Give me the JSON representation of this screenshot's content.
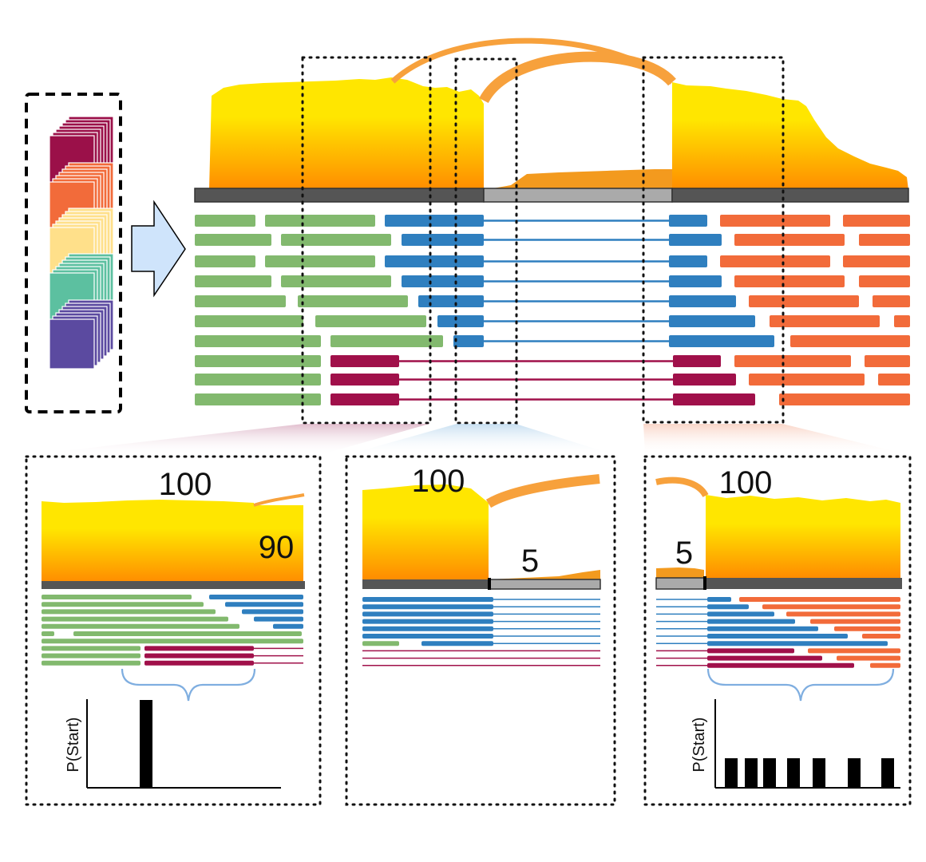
{
  "colors": {
    "green": "#82b96e",
    "blue": "#2f7fbf",
    "orange": "#f26b3a",
    "maroon": "#a0104a",
    "exon_dark": "#555555",
    "exon_light": "#aaaaaa",
    "arc": "#f7a13c",
    "yellow": "#ffe600",
    "deep_orange": "#ff8c00",
    "stack_maroon": "#9b1049",
    "stack_orange": "#f26b3a",
    "stack_yellow": "#ffe08a",
    "stack_teal": "#5cc0a0",
    "stack_purple": "#5b4aa0",
    "arrow_fill": "#cfe4fb"
  },
  "icons": [
    "sample-stack-icon",
    "right-arrow-icon",
    "curly-brace-icon"
  ],
  "panels": [
    {
      "top_value": "100",
      "side_value": "90",
      "ylabel": "P(Start)",
      "has_histogram": true
    },
    {
      "top_value": "100",
      "side_value": "5"
    },
    {
      "top_value": "100",
      "side_value": "5",
      "ylabel": "P(Start)",
      "has_histogram": true
    }
  ]
}
